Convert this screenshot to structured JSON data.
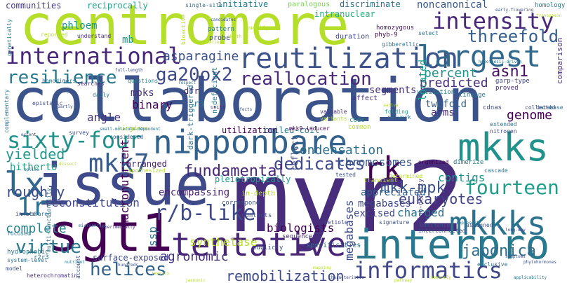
{
  "words": [
    {
      "text": "myr2",
      "color": "#472d7b"
    },
    {
      "text": "collaboration",
      "color": "#3b528b"
    },
    {
      "text": "centromere",
      "color": "#b5de2b"
    },
    {
      "text": "issue",
      "color": "#3e4a89"
    },
    {
      "text": "sgt1",
      "color": "#440154"
    },
    {
      "text": "interpro",
      "color": "#2a788e"
    },
    {
      "text": "nipponbare",
      "color": "#33638d"
    },
    {
      "text": "tentative",
      "color": "#482576"
    },
    {
      "text": "reutilization",
      "color": "#3b528b"
    },
    {
      "text": "international",
      "color": "#482878"
    },
    {
      "text": "mkks",
      "color": "#21918c"
    },
    {
      "text": "mkkks",
      "color": "#2c728e"
    },
    {
      "text": "rk",
      "color": "#440154"
    },
    {
      "text": "lx",
      "color": "#31688e"
    },
    {
      "text": "1r",
      "color": "#2d708e"
    },
    {
      "text": "intensity",
      "color": "#482878"
    },
    {
      "text": "largest",
      "color": "#31688e"
    },
    {
      "text": "threefold",
      "color": "#355f8d"
    },
    {
      "text": "mkk7",
      "color": "#365c8d"
    },
    {
      "text": "sixty-four",
      "color": "#21918c"
    },
    {
      "text": "informatics",
      "color": "#404688"
    },
    {
      "text": "reallocation",
      "color": "#472a7a"
    },
    {
      "text": "ga20ox2",
      "color": "#3e4989"
    },
    {
      "text": "resilience",
      "color": "#2a788e"
    },
    {
      "text": "fourteen",
      "color": "#1f9e89"
    },
    {
      "text": "mkk-mpk",
      "color": "#3b528b"
    },
    {
      "text": "dedicates",
      "color": "#3e4989"
    },
    {
      "text": "r/b-like",
      "color": "#3e4a89"
    },
    {
      "text": "virtue",
      "color": "#2a788e"
    },
    {
      "text": "helices",
      "color": "#33638d"
    },
    {
      "text": "fundamental",
      "color": "#482878"
    },
    {
      "text": "condensation",
      "color": "#2e6e8e"
    },
    {
      "text": "eukaryotes",
      "color": "#414487"
    },
    {
      "text": "remobilization",
      "color": "#3e4a89"
    },
    {
      "text": "asn1",
      "color": "#471063"
    },
    {
      "text": "percent",
      "color": "#21918c"
    },
    {
      "text": "predicted",
      "color": "#472f7d"
    },
    {
      "text": "asparagine",
      "color": "#3b528b"
    },
    {
      "text": "binary",
      "color": "#440154"
    },
    {
      "text": "mpks",
      "color": "#46307e"
    },
    {
      "text": "angle",
      "color": "#46337f"
    },
    {
      "text": "yielded",
      "color": "#1f988b"
    },
    {
      "text": "roughly",
      "color": "#3d4d8a"
    },
    {
      "text": "complete",
      "color": "#25848e"
    },
    {
      "text": "reconstitution",
      "color": "#404688"
    },
    {
      "text": "agronomic",
      "color": "#46307e"
    },
    {
      "text": "japonica",
      "color": "#2f6c8e"
    },
    {
      "text": "synthetase",
      "color": "#b5de2b"
    },
    {
      "text": "biologists",
      "color": "#440154"
    },
    {
      "text": "chromosomes",
      "color": "#39568c"
    },
    {
      "text": "megabases",
      "color": "#3e4989"
    },
    {
      "text": "excised",
      "color": "#404688"
    },
    {
      "text": "charged",
      "color": "#2c728e"
    },
    {
      "text": "appreciated",
      "color": "#355f8d"
    },
    {
      "text": "contigs",
      "color": "#1f948c"
    },
    {
      "text": "genome",
      "color": "#440154"
    },
    {
      "text": "twofold",
      "color": "#33638d"
    },
    {
      "text": "arms",
      "color": "#472a7a"
    },
    {
      "text": "segments",
      "color": "#46307e"
    },
    {
      "text": "arranged",
      "color": "#482475"
    },
    {
      "text": "macronutrient",
      "color": "#440154"
    },
    {
      "text": "encompassing",
      "color": "#481f70"
    },
    {
      "text": "units",
      "color": "#482878"
    },
    {
      "text": "ssp",
      "color": "#2c728e"
    },
    {
      "text": "surface-exposed",
      "color": "#3e4989"
    },
    {
      "text": "hitherto",
      "color": "#1fa187"
    },
    {
      "text": "pleiotropically",
      "color": "#1f988b"
    },
    {
      "text": "coiled-coil",
      "color": "#2a788e"
    },
    {
      "text": "utilization",
      "color": "#440154"
    },
    {
      "text": "dfr",
      "color": "#482475"
    },
    {
      "text": "r3",
      "color": "#2c728e"
    },
    {
      "text": "mb",
      "color": "#1f988b"
    },
    {
      "text": "phloem",
      "color": "#1f988b"
    },
    {
      "text": "communities",
      "color": "#443983"
    },
    {
      "text": "reciprocally",
      "color": "#1fa187"
    },
    {
      "text": "initiative",
      "color": "#2a788e"
    },
    {
      "text": "discriminate",
      "color": "#2c728e"
    },
    {
      "text": "noncanonical",
      "color": "#38588c"
    },
    {
      "text": "intranuclear",
      "color": "#29af7f"
    },
    {
      "text": "paralogous",
      "color": "#7ad151"
    },
    {
      "text": "homozygous",
      "color": "#481668"
    },
    {
      "text": "phyb-9",
      "color": "#440154"
    },
    {
      "text": "duration",
      "color": "#3e4a89"
    },
    {
      "text": "probe",
      "color": "#3e4989"
    },
    {
      "text": "pattern",
      "color": "#26828e"
    },
    {
      "text": "single-site",
      "color": "#2d708e"
    },
    {
      "text": "gibberellic",
      "color": "#2c728e"
    },
    {
      "text": "homology",
      "color": "#2a788e"
    },
    {
      "text": "comparison",
      "color": "#472f7d"
    },
    {
      "text": "garp-type",
      "color": "#404688"
    },
    {
      "text": "proved",
      "color": "#472a7a"
    },
    {
      "text": "validation",
      "color": "#2a788e"
    },
    {
      "text": "lineage",
      "color": "#2c728e"
    },
    {
      "text": "cdnas",
      "color": "#3e4a89"
    },
    {
      "text": "located",
      "color": "#1fa187"
    },
    {
      "text": "affect",
      "color": "#46307e"
    },
    {
      "text": "folding",
      "color": "#1fa187"
    },
    {
      "text": "network",
      "color": "#2d708e"
    },
    {
      "text": "code",
      "color": "#26828e"
    },
    {
      "text": "common",
      "color": "#b5de2b"
    },
    {
      "text": "valuable",
      "color": "#46307e"
    },
    {
      "text": "variants",
      "color": "#b5de2b"
    },
    {
      "text": "reflect",
      "color": "#3e4989"
    },
    {
      "text": "mkk9-inducer",
      "color": "#440154"
    },
    {
      "text": "dark-triggered",
      "color": "#2d708e"
    },
    {
      "text": "n-deficient",
      "color": "#2a788e"
    },
    {
      "text": "daily",
      "color": "#2d708e"
    },
    {
      "text": "searches",
      "color": "#472f7d"
    },
    {
      "text": "questions",
      "color": "#26828e"
    },
    {
      "text": "kingdoms",
      "color": "#b5de2b"
    },
    {
      "text": "considered",
      "color": "#365c8d"
    },
    {
      "text": "survey",
      "color": "#3b528b"
    },
    {
      "text": "homodimers",
      "color": "#2a788e"
    },
    {
      "text": "epistatic",
      "color": "#3e4a89"
    },
    {
      "text": "complementary",
      "color": "#2c728e"
    },
    {
      "text": "understand",
      "color": "#46307e"
    },
    {
      "text": "reported",
      "color": "#b5de2b"
    },
    {
      "text": "genetically",
      "color": "#2a788e"
    },
    {
      "text": "full-length",
      "color": "#3e4a89"
    },
    {
      "text": "hypothesized",
      "color": "#b5de2b"
    },
    {
      "text": "extended",
      "color": "#2d708e"
    },
    {
      "text": "nitrogen",
      "color": "#3e4989"
    },
    {
      "text": "organized",
      "color": "#440154"
    },
    {
      "text": "dimerize",
      "color": "#2c728e"
    },
    {
      "text": "cascade",
      "color": "#2d708e"
    },
    {
      "text": "high-density",
      "color": "#443983"
    },
    {
      "text": "determined",
      "color": "#b5de2b"
    },
    {
      "text": "transient",
      "color": "#b5de2b"
    },
    {
      "text": "tested",
      "color": "#3b528b"
    },
    {
      "text": "correspond",
      "color": "#3b528b"
    },
    {
      "text": "in-depth",
      "color": "#b5de2b"
    },
    {
      "text": "contacts",
      "color": "#3e4989"
    },
    {
      "text": "sequenced",
      "color": "#46307e"
    },
    {
      "text": "publicly",
      "color": "#3b528b"
    },
    {
      "text": "specificities",
      "color": "#2c728e"
    },
    {
      "text": "signature",
      "color": "#3b528b"
    },
    {
      "text": "dominance",
      "color": "#3b528b"
    },
    {
      "text": "represent",
      "color": "#2d708e"
    },
    {
      "text": "interconnected",
      "color": "#3b528b"
    },
    {
      "text": "assigned",
      "color": "#3b528b"
    },
    {
      "text": "exclusive",
      "color": "#2c728e"
    },
    {
      "text": "petiole",
      "color": "#3e4a89"
    },
    {
      "text": "r2r3",
      "color": "#2d708e"
    },
    {
      "text": "hydrophobic",
      "color": "#2a788e"
    },
    {
      "text": "system-level",
      "color": "#2d708e"
    },
    {
      "text": "model",
      "color": "#3e4989"
    },
    {
      "text": "heterochromatin",
      "color": "#46307e"
    },
    {
      "text": "hundreds",
      "color": "#3b528b"
    },
    {
      "text": "nutrient",
      "color": "#2c728e"
    },
    {
      "text": "focused",
      "color": "#2c728e"
    },
    {
      "text": "innate",
      "color": "#3e4a89"
    },
    {
      "text": "shared",
      "color": "#2c728e"
    },
    {
      "text": "account",
      "color": "#3b528b"
    },
    {
      "text": "partly",
      "color": "#3e4a89"
    },
    {
      "text": "select",
      "color": "#2c728e"
    },
    {
      "text": "candidates",
      "color": "#3b528b"
    },
    {
      "text": "starvation",
      "color": "#b5de2b"
    },
    {
      "text": "bioactive",
      "color": "#b5de2b"
    },
    {
      "text": "hypothesis-driven",
      "color": "#2a788e"
    },
    {
      "text": "database",
      "color": "#2d708e"
    },
    {
      "text": "symptoms",
      "color": "#3b528b"
    },
    {
      "text": "collected",
      "color": "#3e4989"
    },
    {
      "text": "long-day",
      "color": "#3e4a89"
    },
    {
      "text": "transposon",
      "color": "#b5de2b"
    },
    {
      "text": "early-flowering",
      "color": "#3b528b"
    },
    {
      "text": "death",
      "color": "#b5de2b"
    },
    {
      "text": "quality",
      "color": "#b5de2b"
    },
    {
      "text": "effects",
      "color": "#3b528b"
    },
    {
      "text": "sativa",
      "color": "#b5de2b"
    },
    {
      "text": "respect",
      "color": "#2d708e"
    },
    {
      "text": "multi-functionality",
      "color": "#2d708e"
    },
    {
      "text": "experimentally",
      "color": "#46307e"
    },
    {
      "text": "extent",
      "color": "#3e4989"
    },
    {
      "text": "small-molecule-dependent",
      "color": "#2c728e"
    },
    {
      "text": "splice",
      "color": "#2c728e"
    },
    {
      "text": "dissect",
      "color": "#b5de2b"
    },
    {
      "text": "microarrays",
      "color": "#2d708e"
    },
    {
      "text": "phytohormones",
      "color": "#3b528b"
    },
    {
      "text": "reveals",
      "color": "#b5de2b"
    },
    {
      "text": "characteristic",
      "color": "#3e4989"
    },
    {
      "text": "severely",
      "color": "#b5de2b"
    },
    {
      "text": "mapping",
      "color": "#b5de2b"
    },
    {
      "text": "jasmonic",
      "color": "#b5de2b"
    },
    {
      "text": "pathway",
      "color": "#b5de2b"
    },
    {
      "text": "applicability",
      "color": "#2c728e"
    }
  ]
}
